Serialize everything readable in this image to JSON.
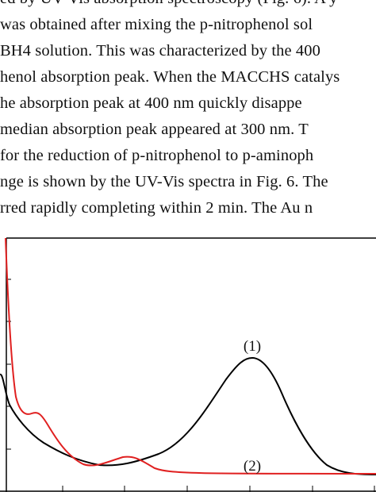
{
  "text_lines": [
    "ed by UV-Vis absorption spectroscopy (Fig. 6). A y",
    "was obtained after mixing the p-nitrophenol sol",
    "BH4 solution. This was characterized by the 400",
    "henol absorption peak. When the MACCHS catalys",
    "he absorption peak at 400 nm quickly disappe",
    "median absorption peak appeared at 300 nm. T",
    "for the reduction of p-nitrophenol to p-aminoph",
    "nge is shown by the UV-Vis spectra in Fig. 6. The",
    "rred rapidly completing within 2 min. The Au n"
  ],
  "figure": {
    "labels": [
      "(1)",
      "(2)"
    ]
  }
}
